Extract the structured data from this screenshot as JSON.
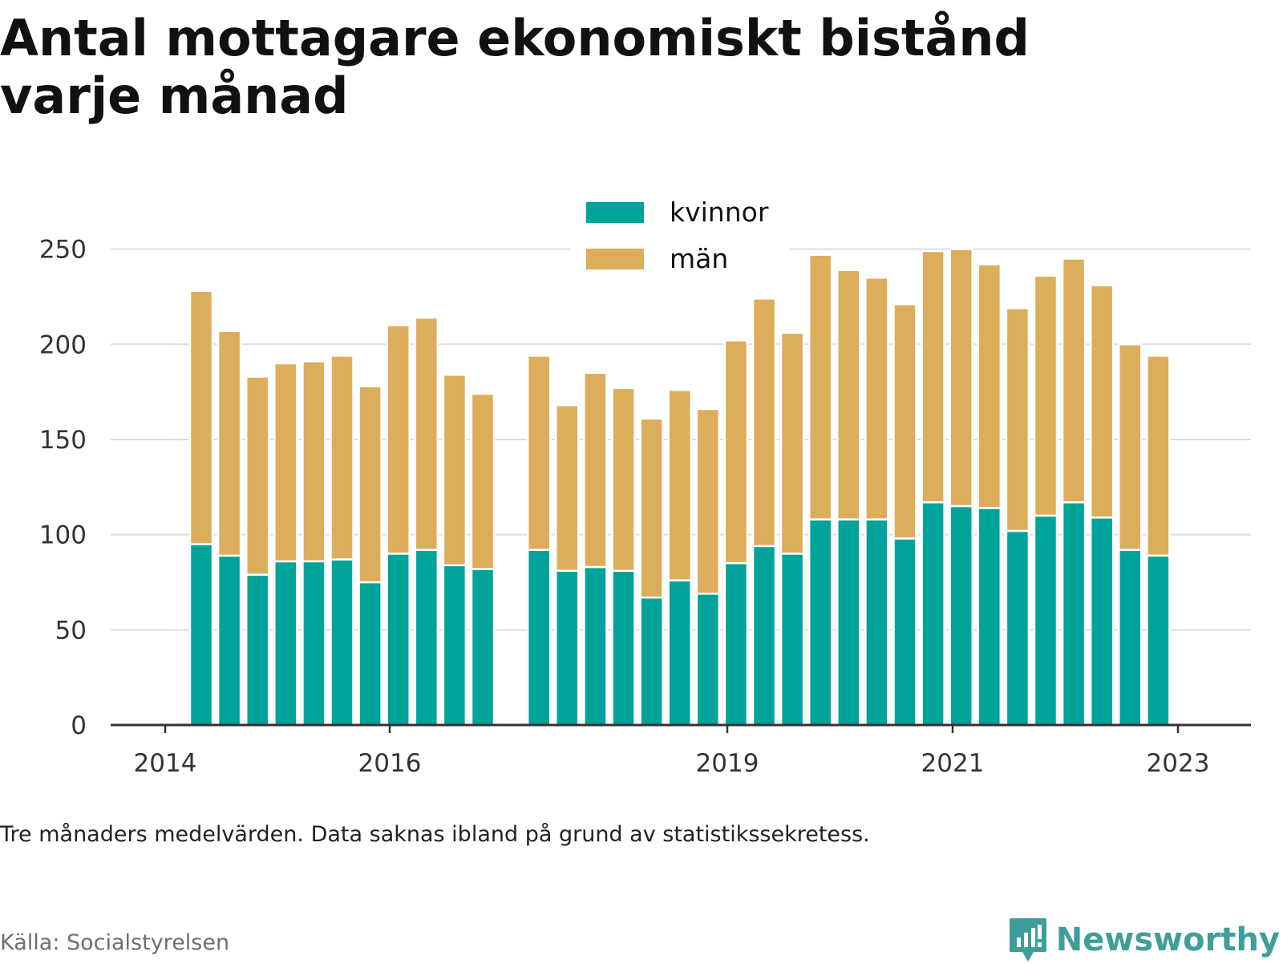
{
  "title": "Antal mottagare ekonomiskt bistånd varje månad",
  "note": "Tre månaders medelvärden. Data saknas ibland på grund av statistikssekretess.",
  "source": "Källa: Socialstyrelsen",
  "brand": {
    "name": "Newsworthy",
    "icon": "bar-chart-speech-bubble-icon"
  },
  "colors": {
    "kvinnor": "#00a39a",
    "man": "#dcad5a",
    "grid": "#dddddd",
    "axis": "#333333",
    "brand": "#3f9e9b"
  },
  "chart_data": {
    "type": "bar",
    "stacked": true,
    "ylim": [
      0,
      265
    ],
    "yticks": [
      0,
      50,
      100,
      150,
      200,
      250
    ],
    "xticks": [
      "2014",
      "2016",
      "2019",
      "2021",
      "2023"
    ],
    "legend_placement": "top-center",
    "grid": true,
    "series": [
      {
        "name": "kvinnor",
        "values": [
          95,
          89,
          79,
          86,
          86,
          87,
          75,
          90,
          92,
          84,
          82,
          null,
          92,
          81,
          83,
          81,
          67,
          76,
          69,
          85,
          94,
          90,
          108,
          108,
          108,
          98,
          117,
          115,
          114,
          102,
          110,
          117,
          109,
          92,
          89
        ]
      },
      {
        "name": "män",
        "values": [
          133,
          118,
          104,
          104,
          105,
          107,
          103,
          120,
          122,
          100,
          92,
          null,
          102,
          87,
          102,
          96,
          94,
          100,
          97,
          117,
          130,
          116,
          139,
          131,
          127,
          123,
          132,
          135,
          128,
          117,
          126,
          128,
          122,
          108,
          105
        ]
      }
    ]
  }
}
